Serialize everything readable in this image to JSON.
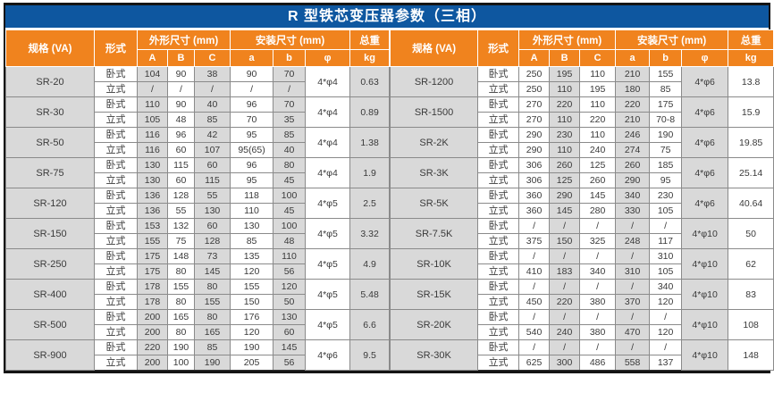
{
  "title": "R 型铁芯变压器参数（三相）",
  "colors": {
    "title_bg": "#0e57a0",
    "header_bg": "#f0831e",
    "shaded_cell": "#d9d9d9",
    "border": "#141414"
  },
  "header": {
    "spec": "规格 (VA)",
    "form": "形式",
    "outline": "外形尺寸 (mm)",
    "mount": "安装尺寸 (mm)",
    "weight": "总重",
    "sub": [
      "A",
      "B",
      "C",
      "a",
      "b",
      "φ",
      "kg"
    ]
  },
  "row_labels": {
    "horizontal": "卧式",
    "vertical": "立式"
  },
  "chart_data": {
    "type": "table",
    "title": "R 型铁芯变压器参数（三相）",
    "columns": [
      "规格 (VA)",
      "形式",
      "A",
      "B",
      "C",
      "a",
      "b",
      "φ",
      "kg"
    ],
    "halves": [
      {
        "side": "left",
        "groups": [
          {
            "spec": "SR-20",
            "horizontal": [
              "104",
              "90",
              "38",
              "90",
              "70"
            ],
            "vertical": [
              "/",
              "/",
              "/",
              "/",
              "/"
            ],
            "phi": "4*φ4",
            "kg": "0.63"
          },
          {
            "spec": "SR-30",
            "horizontal": [
              "110",
              "90",
              "40",
              "96",
              "70"
            ],
            "vertical": [
              "105",
              "48",
              "85",
              "70",
              "35"
            ],
            "phi": "4*φ4",
            "kg": "0.89"
          },
          {
            "spec": "SR-50",
            "horizontal": [
              "116",
              "96",
              "42",
              "95",
              "85"
            ],
            "vertical": [
              "116",
              "60",
              "107",
              "95(65)",
              "40"
            ],
            "phi": "4*φ4",
            "kg": "1.38"
          },
          {
            "spec": "SR-75",
            "horizontal": [
              "130",
              "115",
              "60",
              "96",
              "80"
            ],
            "vertical": [
              "130",
              "60",
              "115",
              "95",
              "45"
            ],
            "phi": "4*φ4",
            "kg": "1.9"
          },
          {
            "spec": "SR-120",
            "horizontal": [
              "136",
              "128",
              "55",
              "118",
              "100"
            ],
            "vertical": [
              "136",
              "55",
              "130",
              "110",
              "45"
            ],
            "phi": "4*φ5",
            "kg": "2.5"
          },
          {
            "spec": "SR-150",
            "horizontal": [
              "153",
              "132",
              "60",
              "130",
              "100"
            ],
            "vertical": [
              "155",
              "75",
              "128",
              "85",
              "48"
            ],
            "phi": "4*φ5",
            "kg": "3.32"
          },
          {
            "spec": "SR-250",
            "horizontal": [
              "175",
              "148",
              "73",
              "135",
              "110"
            ],
            "vertical": [
              "175",
              "80",
              "145",
              "120",
              "56"
            ],
            "phi": "4*φ5",
            "kg": "4.9"
          },
          {
            "spec": "SR-400",
            "horizontal": [
              "178",
              "155",
              "80",
              "155",
              "120"
            ],
            "vertical": [
              "178",
              "80",
              "155",
              "150",
              "50"
            ],
            "phi": "4*φ5",
            "kg": "5.48"
          },
          {
            "spec": "SR-500",
            "horizontal": [
              "200",
              "165",
              "80",
              "176",
              "130"
            ],
            "vertical": [
              "200",
              "80",
              "165",
              "120",
              "60"
            ],
            "phi": "4*φ5",
            "kg": "6.6"
          },
          {
            "spec": "SR-900",
            "horizontal": [
              "220",
              "190",
              "85",
              "190",
              "145"
            ],
            "vertical": [
              "200",
              "100",
              "190",
              "205",
              "56"
            ],
            "phi": "4*φ6",
            "kg": "9.5"
          }
        ]
      },
      {
        "side": "right",
        "groups": [
          {
            "spec": "SR-1200",
            "horizontal": [
              "250",
              "195",
              "110",
              "210",
              "155"
            ],
            "vertical": [
              "250",
              "110",
              "195",
              "180",
              "85"
            ],
            "phi": "4*φ6",
            "kg": "13.8"
          },
          {
            "spec": "SR-1500",
            "horizontal": [
              "270",
              "220",
              "110",
              "220",
              "175"
            ],
            "vertical": [
              "270",
              "110",
              "220",
              "210",
              "70-8"
            ],
            "phi": "4*φ6",
            "kg": "15.9"
          },
          {
            "spec": "SR-2K",
            "horizontal": [
              "290",
              "230",
              "110",
              "246",
              "190"
            ],
            "vertical": [
              "290",
              "110",
              "240",
              "274",
              "75"
            ],
            "phi": "4*φ6",
            "kg": "19.85"
          },
          {
            "spec": "SR-3K",
            "horizontal": [
              "306",
              "260",
              "125",
              "260",
              "185"
            ],
            "vertical": [
              "306",
              "125",
              "260",
              "290",
              "95"
            ],
            "phi": "4*φ6",
            "kg": "25.14"
          },
          {
            "spec": "SR-5K",
            "horizontal": [
              "360",
              "290",
              "145",
              "340",
              "230"
            ],
            "vertical": [
              "360",
              "145",
              "280",
              "330",
              "105"
            ],
            "phi": "4*φ6",
            "kg": "40.64"
          },
          {
            "spec": "SR-7.5K",
            "horizontal": [
              "/",
              "/",
              "/",
              "/",
              "/"
            ],
            "vertical": [
              "375",
              "150",
              "325",
              "248",
              "117"
            ],
            "phi": "4*φ10",
            "kg": "50"
          },
          {
            "spec": "SR-10K",
            "horizontal": [
              "/",
              "/",
              "/",
              "/",
              "310"
            ],
            "vertical": [
              "410",
              "183",
              "340",
              "310",
              "105"
            ],
            "phi": "4*φ10",
            "kg": "62"
          },
          {
            "spec": "SR-15K",
            "horizontal": [
              "/",
              "/",
              "/",
              "/",
              "340"
            ],
            "vertical": [
              "450",
              "220",
              "380",
              "370",
              "120"
            ],
            "phi": "4*φ10",
            "kg": "83"
          },
          {
            "spec": "SR-20K",
            "horizontal": [
              "/",
              "/",
              "/",
              "/",
              "/"
            ],
            "vertical": [
              "540",
              "240",
              "380",
              "470",
              "120"
            ],
            "phi": "4*φ10",
            "kg": "108"
          },
          {
            "spec": "SR-30K",
            "horizontal": [
              "/",
              "/",
              "/",
              "/",
              "/"
            ],
            "vertical": [
              "625",
              "300",
              "486",
              "558",
              "137"
            ],
            "phi": "4*φ10",
            "kg": "148"
          }
        ]
      }
    ],
    "layout": {
      "shade_columns_left": [
        0,
        2,
        4,
        6,
        8
      ],
      "shade_columns_right": [
        0,
        3,
        5,
        7
      ],
      "grid": true,
      "legend_position": "none"
    }
  }
}
